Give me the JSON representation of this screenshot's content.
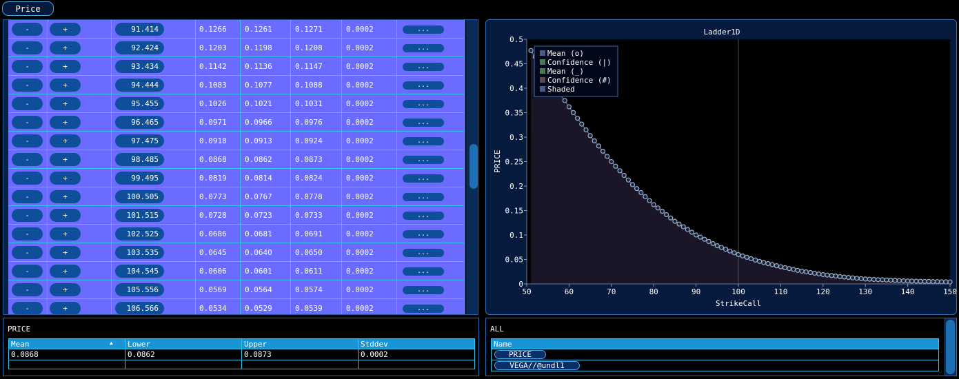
{
  "top_tab": {
    "label": "Price"
  },
  "ladder": {
    "minus_label": "-",
    "plus_label": "+",
    "more_label": "...",
    "rows": [
      {
        "strike": "91.414",
        "mean": "0.1266",
        "lower": "0.1261",
        "upper": "0.1271",
        "stddev": "0.0002"
      },
      {
        "strike": "92.424",
        "mean": "0.1203",
        "lower": "0.1198",
        "upper": "0.1208",
        "stddev": "0.0002"
      },
      {
        "strike": "93.434",
        "mean": "0.1142",
        "lower": "0.1136",
        "upper": "0.1147",
        "stddev": "0.0002"
      },
      {
        "strike": "94.444",
        "mean": "0.1083",
        "lower": "0.1077",
        "upper": "0.1088",
        "stddev": "0.0002"
      },
      {
        "strike": "95.455",
        "mean": "0.1026",
        "lower": "0.1021",
        "upper": "0.1031",
        "stddev": "0.0002"
      },
      {
        "strike": "96.465",
        "mean": "0.0971",
        "lower": "0.0966",
        "upper": "0.0976",
        "stddev": "0.0002"
      },
      {
        "strike": "97.475",
        "mean": "0.0918",
        "lower": "0.0913",
        "upper": "0.0924",
        "stddev": "0.0002"
      },
      {
        "strike": "98.485",
        "mean": "0.0868",
        "lower": "0.0862",
        "upper": "0.0873",
        "stddev": "0.0002"
      },
      {
        "strike": "99.495",
        "mean": "0.0819",
        "lower": "0.0814",
        "upper": "0.0824",
        "stddev": "0.0002"
      },
      {
        "strike": "100.505",
        "mean": "0.0773",
        "lower": "0.0767",
        "upper": "0.0778",
        "stddev": "0.0002"
      },
      {
        "strike": "101.515",
        "mean": "0.0728",
        "lower": "0.0723",
        "upper": "0.0733",
        "stddev": "0.0002"
      },
      {
        "strike": "102.525",
        "mean": "0.0686",
        "lower": "0.0681",
        "upper": "0.0691",
        "stddev": "0.0002"
      },
      {
        "strike": "103.535",
        "mean": "0.0645",
        "lower": "0.0640",
        "upper": "0.0650",
        "stddev": "0.0002"
      },
      {
        "strike": "104.545",
        "mean": "0.0606",
        "lower": "0.0601",
        "upper": "0.0611",
        "stddev": "0.0002"
      },
      {
        "strike": "105.556",
        "mean": "0.0569",
        "lower": "0.0564",
        "upper": "0.0574",
        "stddev": "0.0002"
      },
      {
        "strike": "106.566",
        "mean": "0.0534",
        "lower": "0.0529",
        "upper": "0.0539",
        "stddev": "0.0002"
      }
    ]
  },
  "chart_data": {
    "type": "line",
    "title": "Ladder1D",
    "xlabel": "StrikeCall",
    "ylabel": "PRICE",
    "xlim": [
      50,
      150
    ],
    "ylim": [
      0,
      0.5
    ],
    "xticks": [
      "50",
      "60",
      "70",
      "80",
      "90",
      "100",
      "110",
      "120",
      "130",
      "140",
      "150"
    ],
    "yticks": [
      "0",
      "0.05",
      "0.1",
      "0.15",
      "0.2",
      "0.25",
      "0.3",
      "0.35",
      "0.4",
      "0.45",
      "0.5"
    ],
    "grid": "crosshair-at-x-100",
    "legend_position": "top-left",
    "legend": [
      {
        "label": "Mean (o)",
        "color": "#4a5a8a"
      },
      {
        "label": "Confidence (|)",
        "color": "#4a7a5a"
      },
      {
        "label": "Mean (_)",
        "color": "#4a7a5a"
      },
      {
        "label": "Confidence (#)",
        "color": "#5a4a50"
      },
      {
        "label": "Shaded",
        "color": "#4a5a8a"
      }
    ],
    "series": [
      {
        "x": [
          50,
          55,
          60,
          65,
          70,
          75,
          80,
          85,
          90,
          95,
          100,
          105,
          110,
          115,
          120,
          125,
          130,
          135,
          140,
          145,
          150
        ],
        "values": [
          0.49,
          0.425,
          0.362,
          0.303,
          0.25,
          0.203,
          0.162,
          0.128,
          0.1,
          0.078,
          0.06,
          0.046,
          0.035,
          0.026,
          0.019,
          0.014,
          0.01,
          0.008,
          0.006,
          0.005,
          0.004
        ]
      }
    ],
    "colors": {
      "marker": "#9fb0c8",
      "fill": "#1a1628",
      "line": "#6f84b8",
      "plot_bg": "#000000"
    }
  },
  "price_panel": {
    "title": "PRICE",
    "headers": [
      "Mean",
      "Lower",
      "Upper",
      "Stddev"
    ],
    "sort_indicator": "▲",
    "row": [
      "0.0868",
      "0.0862",
      "0.0873",
      "0.0002"
    ]
  },
  "all_panel": {
    "title": "ALL",
    "header": "Name",
    "items": [
      "PRICE",
      "VEGA//@undl1"
    ]
  }
}
